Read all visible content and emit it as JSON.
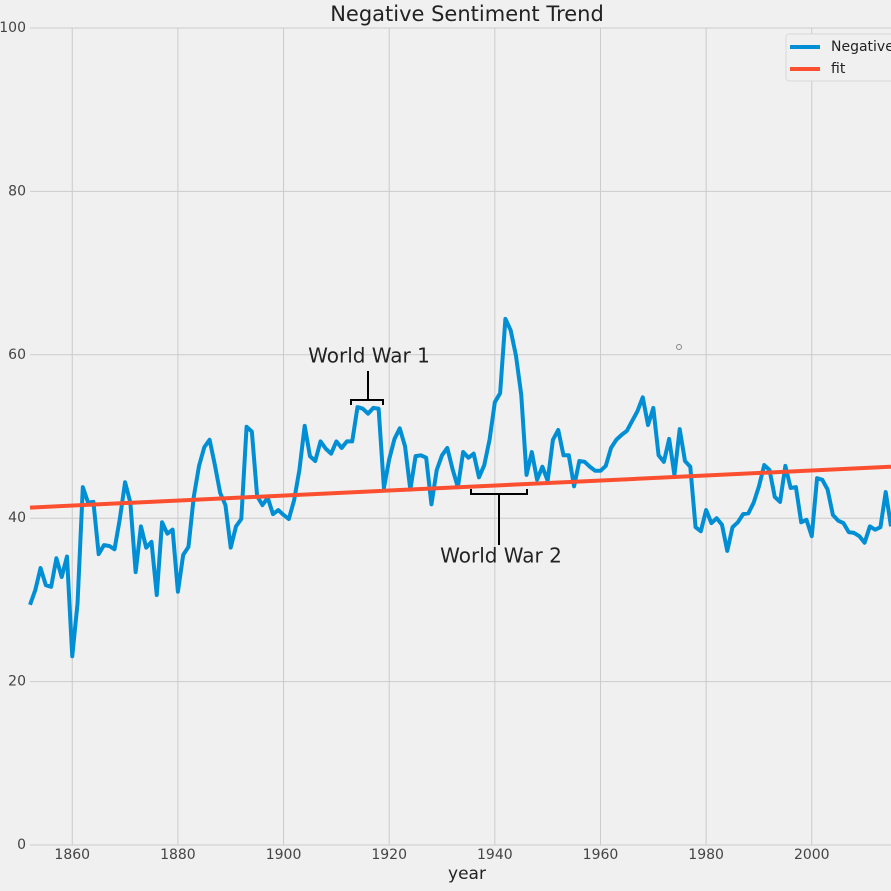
{
  "chart_data": {
    "type": "line",
    "title": "Negative Sentiment Trend",
    "xlabel": "year",
    "x": [
      1852,
      1853,
      1854,
      1855,
      1856,
      1857,
      1858,
      1859,
      1860,
      1861,
      1862,
      1863,
      1864,
      1865,
      1866,
      1867,
      1868,
      1869,
      1870,
      1871,
      1872,
      1873,
      1874,
      1875,
      1876,
      1877,
      1878,
      1879,
      1880,
      1881,
      1882,
      1883,
      1884,
      1885,
      1886,
      1887,
      1888,
      1889,
      1890,
      1891,
      1892,
      1893,
      1894,
      1895,
      1896,
      1897,
      1898,
      1899,
      1900,
      1901,
      1902,
      1903,
      1904,
      1905,
      1906,
      1907,
      1908,
      1909,
      1910,
      1911,
      1912,
      1913,
      1914,
      1915,
      1916,
      1917,
      1918,
      1919,
      1920,
      1921,
      1922,
      1923,
      1924,
      1925,
      1926,
      1927,
      1928,
      1929,
      1930,
      1931,
      1932,
      1933,
      1934,
      1935,
      1936,
      1937,
      1938,
      1939,
      1940,
      1941,
      1942,
      1943,
      1944,
      1945,
      1946,
      1947,
      1948,
      1949,
      1950,
      1951,
      1952,
      1953,
      1954,
      1955,
      1956,
      1957,
      1958,
      1959,
      1960,
      1961,
      1962,
      1963,
      1964,
      1965,
      1966,
      1967,
      1968,
      1969,
      1970,
      1971,
      1972,
      1973,
      1974,
      1975,
      1976,
      1977,
      1978,
      1979,
      1980,
      1981,
      1982,
      1983,
      1984,
      1985,
      1986,
      1987,
      1988,
      1989,
      1990,
      1991,
      1992,
      1993,
      1994,
      1995,
      1996,
      1997,
      1998,
      1999,
      2000,
      2001,
      2002,
      2003,
      2004,
      2005,
      2006,
      2007,
      2008,
      2009,
      2010,
      2011,
      2012,
      2013,
      2014,
      2015
    ],
    "series": [
      {
        "name": "Negative",
        "color": "#008fd5",
        "values": [
          29.4,
          31.2,
          33.9,
          31.8,
          31.6,
          35.1,
          32.8,
          35.3,
          23.1,
          29.6,
          43.8,
          41.9,
          42.0,
          35.6,
          36.7,
          36.6,
          36.2,
          39.9,
          44.4,
          41.9,
          33.4,
          39.0,
          36.4,
          37.1,
          30.6,
          39.5,
          38.1,
          38.6,
          31.0,
          35.5,
          36.5,
          42.6,
          46.4,
          48.7,
          49.6,
          46.5,
          43.1,
          41.6,
          36.4,
          39.0,
          39.9,
          51.2,
          50.6,
          42.7,
          41.6,
          42.5,
          40.5,
          41.0,
          40.4,
          39.9,
          42.2,
          45.9,
          51.3,
          47.6,
          47.0,
          49.4,
          48.5,
          47.9,
          49.4,
          48.6,
          49.4,
          49.4,
          53.6,
          53.4,
          52.8,
          53.5,
          53.4,
          43.7,
          47.2,
          49.7,
          51.0,
          48.8,
          43.5,
          47.6,
          47.7,
          47.4,
          41.7,
          45.9,
          47.7,
          48.6,
          46.0,
          43.8,
          48.1,
          47.4,
          47.9,
          45.0,
          46.5,
          49.6,
          54.2,
          55.3,
          64.4,
          63.0,
          59.9,
          55.1,
          45.3,
          48.1,
          44.7,
          46.3,
          44.6,
          49.6,
          50.8,
          47.7,
          47.7,
          43.9,
          47.0,
          46.9,
          46.3,
          45.8,
          45.8,
          46.4,
          48.6,
          49.6,
          50.2,
          50.7,
          51.9,
          53.1,
          54.8,
          51.4,
          53.5,
          47.7,
          46.9,
          49.7,
          45.3,
          50.9,
          47.0,
          46.3,
          38.9,
          38.4,
          41.0,
          39.4,
          40.0,
          39.2,
          36.0,
          38.9,
          39.5,
          40.5,
          40.6,
          41.9,
          43.9,
          46.5,
          45.9,
          42.6,
          42.0,
          46.4,
          43.7,
          43.8,
          39.5,
          39.8,
          37.8,
          44.9,
          44.7,
          43.5,
          40.4,
          39.7,
          39.4,
          38.3,
          38.2,
          37.8,
          37.0,
          39.0,
          38.6,
          38.9,
          43.2,
          39.0
        ]
      },
      {
        "name": "fit",
        "color": "#fc4f30",
        "x": [
          1852,
          2015
        ],
        "values": [
          41.3,
          46.3
        ]
      }
    ],
    "annotations": [
      "World War 1",
      "World War 2"
    ],
    "xlim": [
      1852,
      2015
    ],
    "ylim": [
      0,
      100
    ],
    "xticks": [
      1860,
      1880,
      1900,
      1920,
      1940,
      1960,
      1980,
      2000
    ],
    "yticks": [
      0,
      20,
      40,
      60,
      80,
      100
    ],
    "grid": true,
    "legend": "upper right"
  }
}
